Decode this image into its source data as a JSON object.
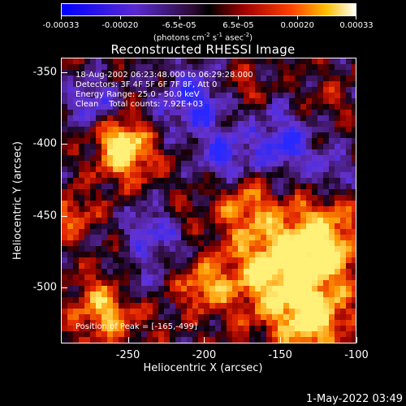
{
  "colorbar": {
    "tick_labels": [
      "-0.00033",
      "-0.00020",
      "-6.5e-05",
      "6.5e-05",
      "0.00020",
      "0.00033"
    ],
    "units_prefix": "(photons cm",
    "units_exp1": "-2",
    "units_mid1": " s",
    "units_exp2": "-1",
    "units_mid2": " asec",
    "units_exp3": "-2",
    "units_suffix": ")"
  },
  "title": "Reconstructed RHESSI Image",
  "info": {
    "time": "18-Aug-2002 06:23:48.000 to 06:29:28.000",
    "detectors": "Detectors: 3F 4F 5F 6F 7F 8F, Att 0",
    "energy": "Energy Range: 25.0 - 50.0 keV",
    "clean": "Clean    Total counts: 7.92E+03",
    "peak": "Position of Peak = [-165,-499]"
  },
  "axes": {
    "xlabel": "Heliocentric X (arcsec)",
    "ylabel": "Heliocentric Y (arcsec)",
    "xticks": [
      "-250",
      "-200",
      "-150",
      "-100"
    ],
    "xtick_values": [
      -250,
      -200,
      -150,
      -100
    ],
    "yticks": [
      "-350",
      "-400",
      "-450",
      "-500"
    ],
    "ytick_values": [
      -350,
      -400,
      -450,
      -500
    ],
    "xlim": [
      -294,
      -100
    ],
    "ylim": [
      -539,
      -340
    ]
  },
  "timestamp": "1-May-2022 03:49"
}
